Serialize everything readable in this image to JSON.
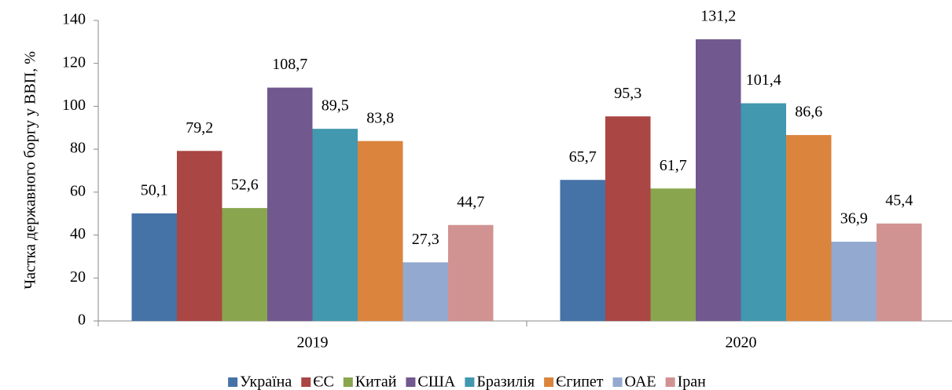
{
  "chart_data": {
    "type": "bar",
    "y_label": "Частка державного боргу у ВВП, %",
    "categories": [
      "2019",
      "2020"
    ],
    "series": [
      {
        "name": "Україна",
        "color": "#4572a7",
        "values": [
          50.1,
          65.7
        ],
        "value_labels": [
          "50,1",
          "65,7"
        ]
      },
      {
        "name": "ЄС",
        "color": "#aa4643",
        "values": [
          79.2,
          95.3
        ],
        "value_labels": [
          "79,2",
          "95,3"
        ]
      },
      {
        "name": "Китай",
        "color": "#89a54e",
        "values": [
          52.6,
          61.7
        ],
        "value_labels": [
          "52,6",
          "61,7"
        ]
      },
      {
        "name": "США",
        "color": "#71588f",
        "values": [
          108.7,
          131.2
        ],
        "value_labels": [
          "108,7",
          "131,2"
        ]
      },
      {
        "name": "Бразилія",
        "color": "#4198af",
        "values": [
          89.5,
          101.4
        ],
        "value_labels": [
          "89,5",
          "101,4"
        ]
      },
      {
        "name": "Єгипет",
        "color": "#db843d",
        "values": [
          83.8,
          86.6
        ],
        "value_labels": [
          "83,8",
          "86,6"
        ]
      },
      {
        "name": "ОАЕ",
        "color": "#93a9cf",
        "values": [
          27.3,
          36.9
        ],
        "value_labels": [
          "27,3",
          "36,9"
        ]
      },
      {
        "name": "Іран",
        "color": "#d19392",
        "values": [
          44.7,
          45.4
        ],
        "value_labels": [
          "44,7",
          "45,4"
        ]
      }
    ],
    "ylim": [
      0,
      140
    ],
    "yticks": [
      0,
      20,
      40,
      60,
      80,
      100,
      120,
      140
    ],
    "grid": false,
    "legend": "bottom"
  }
}
